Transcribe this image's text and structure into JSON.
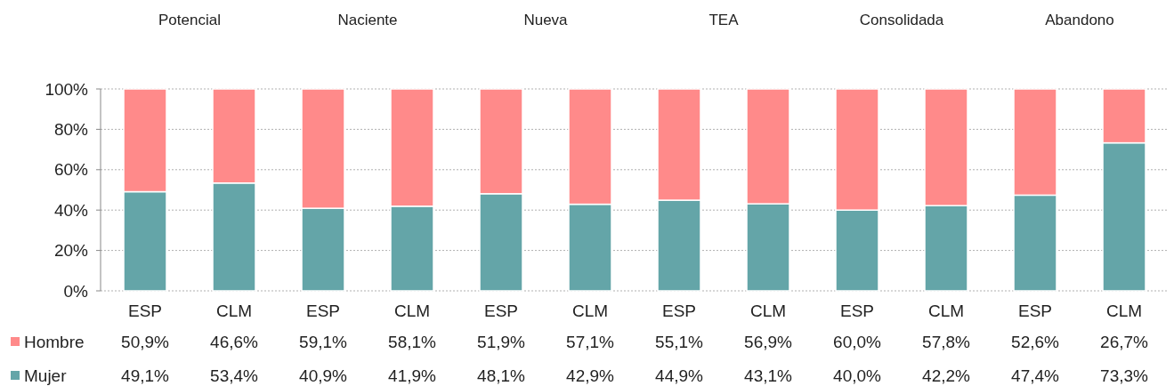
{
  "chart_data": {
    "type": "bar",
    "stacked": true,
    "categories": [
      "ESP",
      "CLM",
      "ESP",
      "CLM",
      "ESP",
      "CLM",
      "ESP",
      "CLM",
      "ESP",
      "CLM",
      "ESP",
      "CLM"
    ],
    "series": [
      {
        "name": "Mujer",
        "color": "#64a5a8",
        "values": [
          49.1,
          53.4,
          40.9,
          41.9,
          48.1,
          42.9,
          44.9,
          43.1,
          40.0,
          42.2,
          47.4,
          73.3
        ],
        "value_labels": [
          "49,1%",
          "53,4%",
          "40,9%",
          "41,9%",
          "48,1%",
          "42,9%",
          "44,9%",
          "43,1%",
          "40,0%",
          "42,2%",
          "47,4%",
          "73,3%"
        ]
      },
      {
        "name": "Hombre",
        "color": "#ff8a8a",
        "values": [
          50.9,
          46.6,
          59.1,
          58.1,
          51.9,
          57.1,
          55.1,
          56.9,
          60.0,
          57.8,
          52.6,
          26.7
        ],
        "value_labels": [
          "50,9%",
          "46,6%",
          "59,1%",
          "58,1%",
          "51,9%",
          "57,1%",
          "55,1%",
          "56,9%",
          "60,0%",
          "57,8%",
          "52,6%",
          "26,7%"
        ]
      }
    ],
    "annotations": [
      "Potencial",
      "Naciente",
      "Nueva",
      "TEA",
      "Consolidada",
      "Abandono"
    ],
    "ylim": [
      0,
      100
    ],
    "yticks": [
      {
        "value": 0,
        "label": "0%"
      },
      {
        "value": 20,
        "label": "20%"
      },
      {
        "value": 40,
        "label": "40%"
      },
      {
        "value": 60,
        "label": "60%"
      },
      {
        "value": 80,
        "label": "80%"
      },
      {
        "value": 100,
        "label": "100%"
      }
    ],
    "grid": "y",
    "legend": "bottom"
  }
}
